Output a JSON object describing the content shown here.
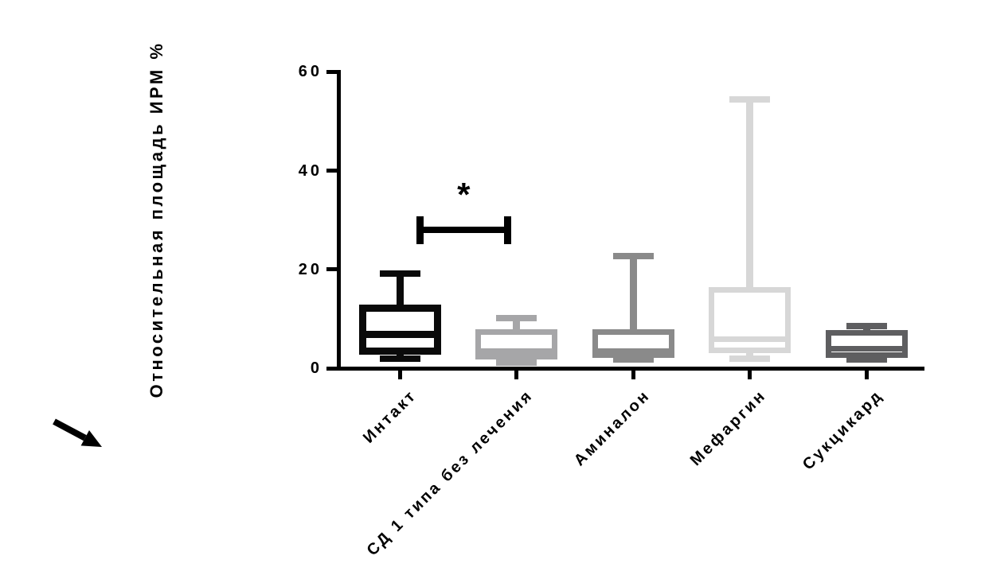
{
  "page": {
    "background": "#ffffff"
  },
  "chart_data": {
    "type": "box",
    "title": "",
    "ylabel": "Относительная площадь ИРМ %",
    "xlabel": "",
    "ylim": [
      0,
      60
    ],
    "yticks": [
      0,
      20,
      40,
      60
    ],
    "categories": [
      "Интакт",
      "СД 1 типа без лечения",
      "Аминалон",
      "Мефаргин",
      "Сукцикард"
    ],
    "series": [
      {
        "name": "Интакт",
        "whisker_low": 1.9,
        "q1": 3.4,
        "median": 6.9,
        "q3": 12.2,
        "whisker_high": 19.2,
        "color": "#0a0a0a"
      },
      {
        "name": "СД 1 типа без лечения",
        "whisker_low": 1.1,
        "q1": 2.3,
        "median": 3.5,
        "q3": 7.3,
        "whisker_high": 10.1,
        "color": "#a6a6a8"
      },
      {
        "name": "Аминалон",
        "whisker_low": 1.7,
        "q1": 2.7,
        "median": 3.4,
        "q3": 7.3,
        "whisker_high": 22.7,
        "color": "#8a8a8a"
      },
      {
        "name": "Мефаргин",
        "whisker_low": 1.9,
        "q1": 3.7,
        "median": 5.8,
        "q3": 15.9,
        "whisker_high": 54.5,
        "color": "#d7d7d7"
      },
      {
        "name": "Сукцикард",
        "whisker_low": 1.7,
        "q1": 2.7,
        "median": 3.9,
        "q3": 7.2,
        "whisker_high": 8.6,
        "color": "#5e5e60"
      }
    ],
    "annotations": [
      {
        "type": "significance-bracket",
        "label": "*",
        "group_start": 0,
        "group_end": 1,
        "bar_y": 28.0,
        "cap_top_y": 30.8,
        "cap_bottom_y": 25.1
      }
    ],
    "grid": false,
    "legend": null
  },
  "decorations": {
    "arrow_icon": "down-right-arrow"
  }
}
